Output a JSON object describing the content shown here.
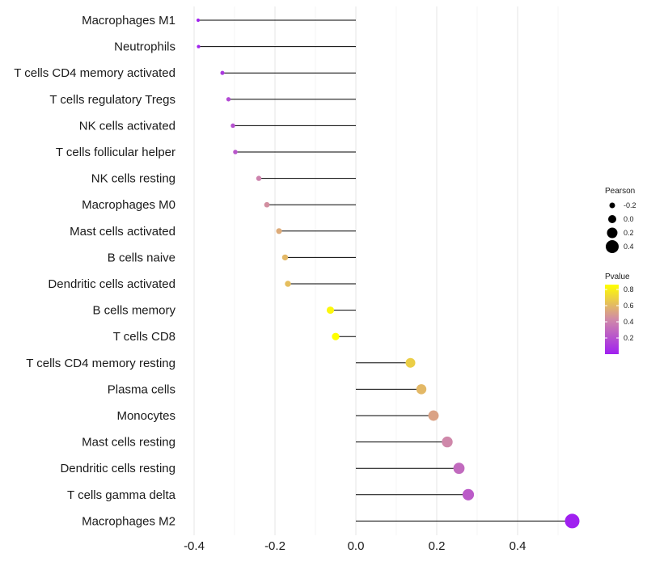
{
  "chart_data": {
    "type": "lollipop",
    "xlim": [
      -0.4,
      0.55
    ],
    "x_ticks": [
      -0.4,
      -0.2,
      0.0,
      0.2,
      0.4
    ],
    "x_tick_labels": [
      "-0.4",
      "-0.2",
      "0.0",
      "0.2",
      "0.4"
    ],
    "categories": [
      "Macrophages M1",
      "Neutrophils",
      "T cells CD4 memory activated",
      "T cells regulatory  Tregs",
      "NK cells activated",
      "T cells follicular helper",
      "NK cells resting",
      "Macrophages M0",
      "Mast cells activated",
      "B cells naive",
      "Dendritic cells activated",
      "B cells memory",
      "T cells CD8",
      "T cells CD4 memory resting",
      "Plasma cells",
      "Monocytes",
      "Mast cells resting",
      "Dendritic cells resting",
      "T cells gamma delta",
      "Macrophages M2"
    ],
    "pearson": [
      -0.39,
      -0.389,
      -0.33,
      -0.315,
      -0.304,
      -0.298,
      -0.24,
      -0.22,
      -0.19,
      -0.175,
      -0.168,
      -0.063,
      -0.05,
      0.135,
      0.162,
      0.192,
      0.226,
      0.255,
      0.278,
      0.535
    ],
    "pvalue": [
      0.01,
      0.01,
      0.1,
      0.17,
      0.2,
      0.22,
      0.4,
      0.45,
      0.55,
      0.6,
      0.62,
      0.83,
      0.86,
      0.68,
      0.6,
      0.52,
      0.42,
      0.3,
      0.24,
      0.001
    ],
    "legend_size": {
      "title": "Pearson",
      "labels": [
        "-0.2",
        "0.0",
        "0.2",
        "0.4"
      ],
      "values": [
        -0.2,
        0.0,
        0.2,
        0.4
      ]
    },
    "legend_color": {
      "title": "Pvalue",
      "tick_labels": [
        "0.8",
        "0.6",
        "0.4",
        "0.2"
      ],
      "tick_values": [
        0.8,
        0.6,
        0.4,
        0.2
      ],
      "range": [
        0.0,
        0.86
      ],
      "color_low": "#a020f0",
      "color_mid": "#d08aa8",
      "color_high": "#ffff00"
    }
  }
}
